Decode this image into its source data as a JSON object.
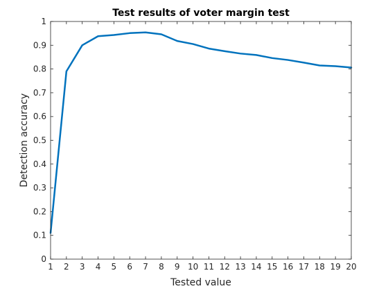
{
  "chart_data": {
    "type": "line",
    "title": "Test results of voter margin test",
    "xlabel": "Tested value",
    "ylabel": "Detection accuracy",
    "xlim": [
      1,
      20
    ],
    "ylim": [
      0,
      1
    ],
    "x_ticks": [
      1,
      2,
      3,
      4,
      5,
      6,
      7,
      8,
      9,
      10,
      11,
      12,
      13,
      14,
      15,
      16,
      17,
      18,
      19,
      20
    ],
    "y_ticks": [
      "0",
      "0.1",
      "0.2",
      "0.3",
      "0.4",
      "0.5",
      "0.6",
      "0.7",
      "0.8",
      "0.9",
      "1"
    ],
    "grid": false,
    "series": [
      {
        "x": [
          1,
          2,
          3,
          4,
          5,
          6,
          7,
          8,
          9,
          10,
          11,
          12,
          13,
          14,
          15,
          16,
          17,
          18,
          19,
          20
        ],
        "values": [
          0.11,
          0.79,
          0.9,
          0.938,
          0.943,
          0.951,
          0.954,
          0.946,
          0.918,
          0.905,
          0.886,
          0.875,
          0.865,
          0.859,
          0.846,
          0.838,
          0.827,
          0.815,
          0.812,
          0.806
        ],
        "color": "#0072bd"
      }
    ]
  }
}
